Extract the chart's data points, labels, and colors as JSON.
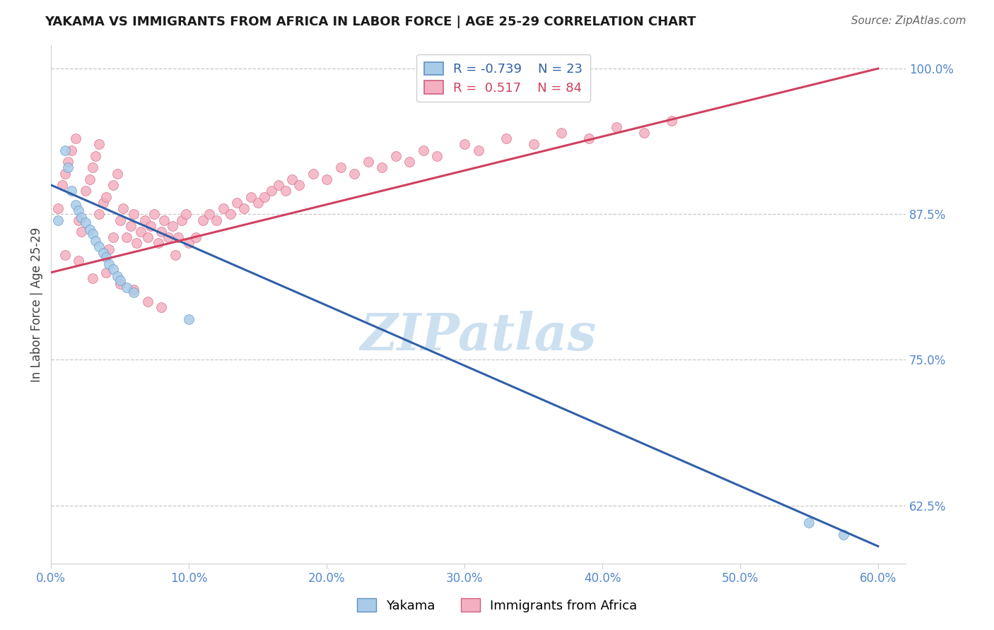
{
  "title": "YAKAMA VS IMMIGRANTS FROM AFRICA IN LABOR FORCE | AGE 25-29 CORRELATION CHART",
  "source_text": "Source: ZipAtlas.com",
  "ylabel": "In Labor Force | Age 25-29",
  "xlim": [
    0.0,
    0.62
  ],
  "ylim": [
    0.575,
    1.02
  ],
  "xtick_labels": [
    "0.0%",
    "10.0%",
    "20.0%",
    "30.0%",
    "40.0%",
    "50.0%",
    "60.0%"
  ],
  "xtick_values": [
    0.0,
    0.1,
    0.2,
    0.3,
    0.4,
    0.5,
    0.6
  ],
  "ytick_labels": [
    "62.5%",
    "75.0%",
    "87.5%",
    "100.0%"
  ],
  "ytick_values": [
    0.625,
    0.75,
    0.875,
    1.0
  ],
  "hline_values": [
    1.0,
    0.875,
    0.75,
    0.625
  ],
  "legend_R_blue": "-0.739",
  "legend_N_blue": "23",
  "legend_R_pink": "0.517",
  "legend_N_pink": "84",
  "blue_scatter_color": "#a8cce8",
  "pink_scatter_color": "#f4b0c0",
  "blue_edge_color": "#6090c0",
  "pink_edge_color": "#d06080",
  "blue_line_color": "#3060a8",
  "pink_line_color": "#d04060",
  "watermark_color": "#cce0f0",
  "watermark_text": "ZIPatlas",
  "yakama_label": "Yakama",
  "africa_label": "Immigrants from Africa",
  "tick_color": "#5588cc",
  "title_color": "#1a1a1a",
  "source_color": "#666666",
  "yakama_x": [
    0.005,
    0.01,
    0.012,
    0.015,
    0.018,
    0.02,
    0.022,
    0.025,
    0.028,
    0.03,
    0.032,
    0.035,
    0.038,
    0.04,
    0.042,
    0.045,
    0.048,
    0.05,
    0.055,
    0.06,
    0.1,
    0.55,
    0.575
  ],
  "yakama_y": [
    0.87,
    0.93,
    0.915,
    0.895,
    0.883,
    0.878,
    0.872,
    0.868,
    0.862,
    0.858,
    0.852,
    0.847,
    0.842,
    0.838,
    0.832,
    0.828,
    0.822,
    0.818,
    0.812,
    0.808,
    0.785,
    0.61,
    0.6
  ],
  "africa_x": [
    0.005,
    0.008,
    0.01,
    0.012,
    0.015,
    0.018,
    0.02,
    0.022,
    0.025,
    0.028,
    0.03,
    0.032,
    0.035,
    0.035,
    0.038,
    0.04,
    0.042,
    0.045,
    0.045,
    0.048,
    0.05,
    0.052,
    0.055,
    0.058,
    0.06,
    0.062,
    0.065,
    0.068,
    0.07,
    0.072,
    0.075,
    0.078,
    0.08,
    0.082,
    0.085,
    0.088,
    0.09,
    0.092,
    0.095,
    0.098,
    0.1,
    0.105,
    0.11,
    0.115,
    0.12,
    0.125,
    0.13,
    0.135,
    0.14,
    0.145,
    0.15,
    0.155,
    0.16,
    0.165,
    0.17,
    0.175,
    0.18,
    0.19,
    0.2,
    0.21,
    0.22,
    0.23,
    0.24,
    0.25,
    0.26,
    0.27,
    0.28,
    0.3,
    0.31,
    0.33,
    0.35,
    0.37,
    0.39,
    0.41,
    0.43,
    0.45,
    0.01,
    0.02,
    0.03,
    0.04,
    0.05,
    0.06,
    0.07,
    0.08
  ],
  "africa_y": [
    0.88,
    0.9,
    0.91,
    0.92,
    0.93,
    0.94,
    0.87,
    0.86,
    0.895,
    0.905,
    0.915,
    0.925,
    0.935,
    0.875,
    0.885,
    0.89,
    0.845,
    0.855,
    0.9,
    0.91,
    0.87,
    0.88,
    0.855,
    0.865,
    0.875,
    0.85,
    0.86,
    0.87,
    0.855,
    0.865,
    0.875,
    0.85,
    0.86,
    0.87,
    0.855,
    0.865,
    0.84,
    0.855,
    0.87,
    0.875,
    0.85,
    0.855,
    0.87,
    0.875,
    0.87,
    0.88,
    0.875,
    0.885,
    0.88,
    0.89,
    0.885,
    0.89,
    0.895,
    0.9,
    0.895,
    0.905,
    0.9,
    0.91,
    0.905,
    0.915,
    0.91,
    0.92,
    0.915,
    0.925,
    0.92,
    0.93,
    0.925,
    0.935,
    0.93,
    0.94,
    0.935,
    0.945,
    0.94,
    0.95,
    0.945,
    0.955,
    0.84,
    0.835,
    0.82,
    0.825,
    0.815,
    0.81,
    0.8,
    0.795
  ]
}
